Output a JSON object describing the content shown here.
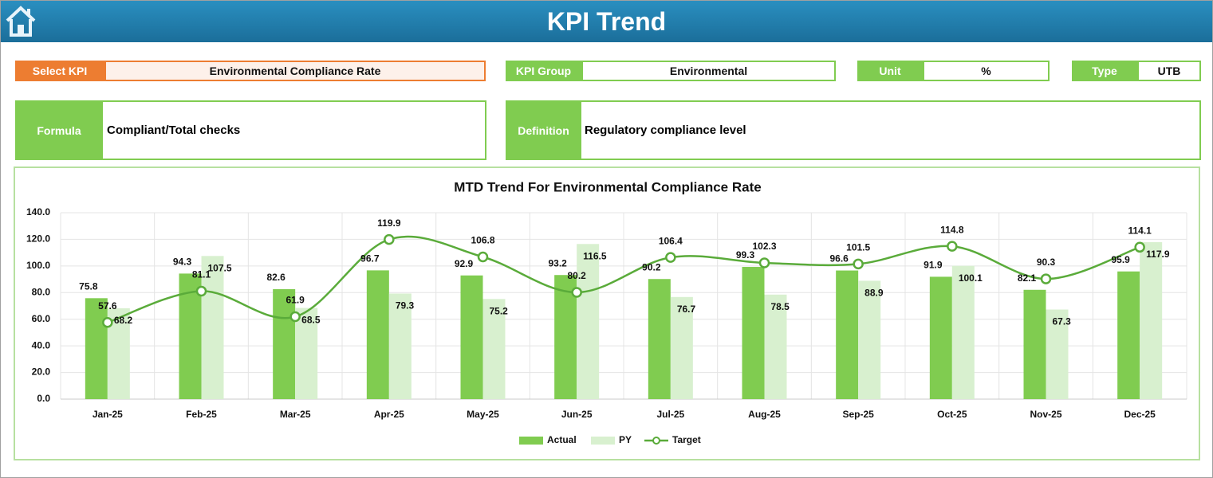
{
  "header": {
    "title": "KPI Trend"
  },
  "fields": {
    "select_kpi": {
      "label": "Select KPI",
      "value": "Environmental Compliance Rate"
    },
    "kpi_group": {
      "label": "KPI Group",
      "value": "Environmental"
    },
    "unit": {
      "label": "Unit",
      "value": "%"
    },
    "type": {
      "label": "Type",
      "value": "UTB"
    },
    "formula": {
      "label": "Formula",
      "value": "Compliant/Total checks"
    },
    "definition": {
      "label": "Definition",
      "value": "Regulatory compliance level"
    }
  },
  "chart_data": {
    "type": "bar",
    "title": "MTD Trend For Environmental Compliance Rate",
    "categories": [
      "Jan-25",
      "Feb-25",
      "Mar-25",
      "Apr-25",
      "May-25",
      "Jun-25",
      "Jul-25",
      "Aug-25",
      "Sep-25",
      "Oct-25",
      "Nov-25",
      "Dec-25"
    ],
    "series": [
      {
        "name": "Actual",
        "type": "bar",
        "color": "#80cc50",
        "values": [
          75.8,
          94.3,
          82.6,
          96.7,
          92.9,
          93.2,
          90.2,
          99.3,
          96.6,
          91.9,
          82.1,
          95.9
        ]
      },
      {
        "name": "PY",
        "type": "bar",
        "color": "#d8f0cf",
        "values": [
          68.2,
          107.5,
          68.5,
          79.3,
          75.2,
          116.5,
          76.7,
          78.5,
          88.9,
          100.1,
          67.3,
          117.9
        ]
      },
      {
        "name": "Target",
        "type": "line",
        "color": "#5aab3a",
        "values": [
          57.6,
          81.1,
          61.9,
          119.9,
          106.8,
          80.2,
          106.4,
          102.3,
          101.5,
          114.8,
          90.3,
          114.1
        ]
      }
    ],
    "ylim": [
      0,
      140
    ],
    "yticks": [
      {
        "value": 0,
        "label": "0.0"
      },
      {
        "value": 20,
        "label": "20.0"
      },
      {
        "value": 40,
        "label": "40.0"
      },
      {
        "value": 60,
        "label": "60.0"
      },
      {
        "value": 80,
        "label": "80.0"
      },
      {
        "value": 100,
        "label": "100.0"
      },
      {
        "value": 120,
        "label": "120.0"
      },
      {
        "value": 140,
        "label": "140.0"
      }
    ],
    "grid": true,
    "legend": "bottom"
  }
}
